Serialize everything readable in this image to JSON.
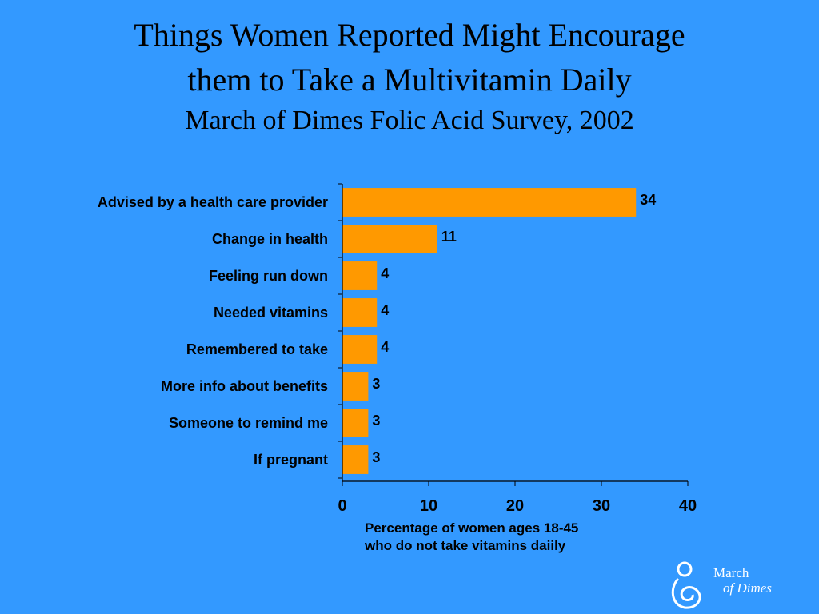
{
  "title_line1": "Things Women Reported Might Encourage",
  "title_line2": "them to Take a Multivitamin Daily",
  "subtitle": "March of Dimes Folic Acid Survey, 2002",
  "chart_data": {
    "type": "bar",
    "orientation": "horizontal",
    "categories": [
      "Advised by a health care provider",
      "Change in health",
      "Feeling run down",
      "Needed vitamins",
      "Remembered to take",
      "More info about benefits",
      "Someone to remind me",
      "If pregnant"
    ],
    "values": [
      34,
      11,
      4,
      4,
      4,
      3,
      3,
      3
    ],
    "xlim": [
      0,
      40
    ],
    "xticks": [
      0,
      10,
      20,
      30,
      40
    ],
    "xlabel_line1": "Percentage of women ages 18-45",
    "xlabel_line2": "who do not take vitamins daiily",
    "bar_color": "#ff9900",
    "grid": false,
    "legend": "none"
  },
  "logo": {
    "line1": "March",
    "line2": "of Dimes",
    "color": "#ffffff"
  }
}
